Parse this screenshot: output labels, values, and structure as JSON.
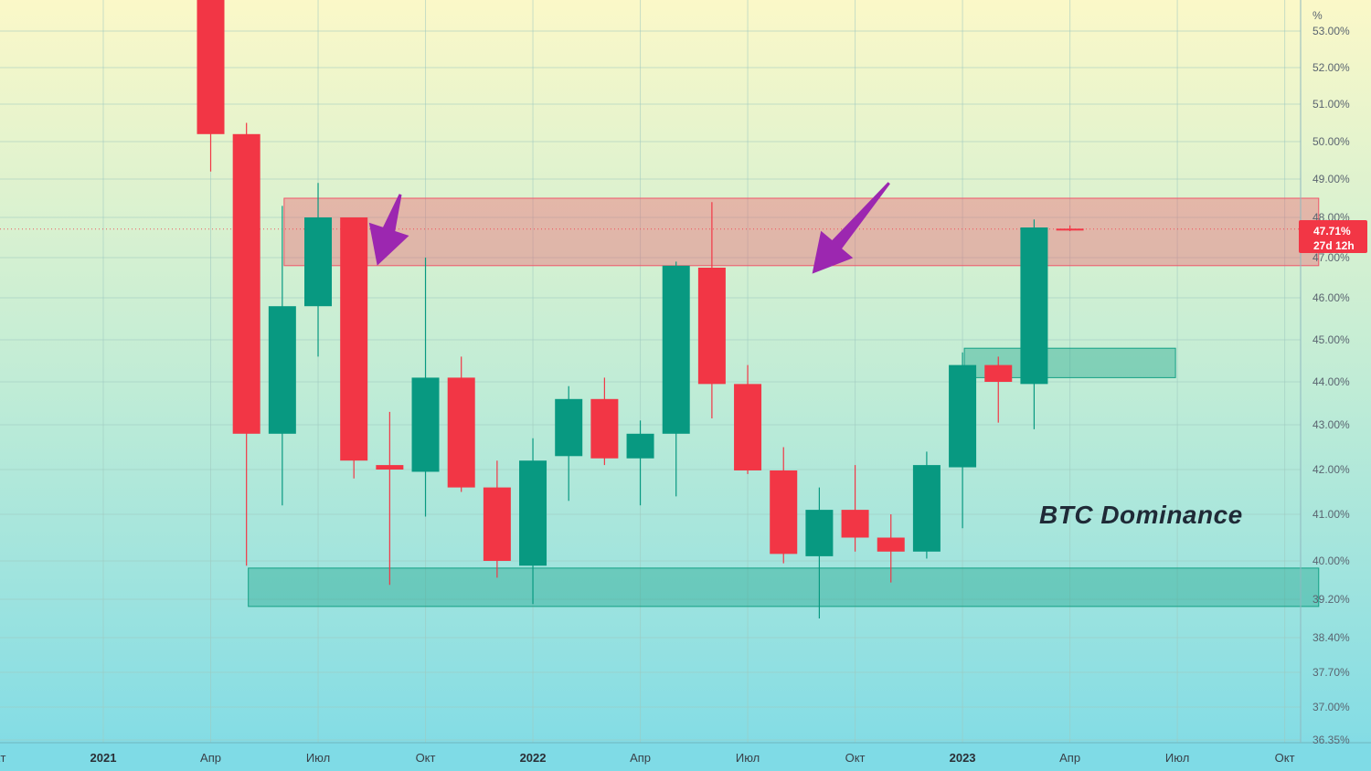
{
  "chart_data": {
    "type": "candlestick",
    "annotation": "BTC Dominance",
    "price_unit": "%",
    "timeframe": "monthly",
    "current_price_label": "47.71%",
    "countdown_label": "27d 12h",
    "x_tick_labels": [
      {
        "month": 0,
        "label": "2021",
        "year": true
      },
      {
        "month": 3,
        "label": "Апр"
      },
      {
        "month": 6,
        "label": "Июл"
      },
      {
        "month": 9,
        "label": "Окт"
      },
      {
        "month": 12,
        "label": "2022",
        "year": true
      },
      {
        "month": 15,
        "label": "Апр"
      },
      {
        "month": 18,
        "label": "Июл"
      },
      {
        "month": 21,
        "label": "Окт"
      },
      {
        "month": 24,
        "label": "2023",
        "year": true
      },
      {
        "month": 27,
        "label": "Апр"
      },
      {
        "month": 30,
        "label": "Июл"
      },
      {
        "month": 33,
        "label": "Окт"
      }
    ],
    "x_tick_edge_label": "Окт",
    "y_ticks": [
      {
        "value": 53.0,
        "label": "53.00%"
      },
      {
        "value": 52.0,
        "label": "52.00%"
      },
      {
        "value": 51.0,
        "label": "51.00%"
      },
      {
        "value": 50.0,
        "label": "50.00%"
      },
      {
        "value": 49.0,
        "label": "49.00%"
      },
      {
        "value": 48.0,
        "label": "48.00%"
      },
      {
        "value": 47.0,
        "label": "47.00%"
      },
      {
        "value": 46.0,
        "label": "46.00%"
      },
      {
        "value": 45.0,
        "label": "45.00%"
      },
      {
        "value": 44.0,
        "label": "44.00%"
      },
      {
        "value": 43.0,
        "label": "43.00%"
      },
      {
        "value": 42.0,
        "label": "42.00%"
      },
      {
        "value": 41.0,
        "label": "41.00%"
      },
      {
        "value": 40.0,
        "label": "40.00%"
      },
      {
        "value": 39.2,
        "label": "39.20%"
      },
      {
        "value": 38.4,
        "label": "38.40%"
      },
      {
        "value": 37.7,
        "label": "37.70%"
      },
      {
        "value": 37.0,
        "label": "37.00%"
      },
      {
        "value": 36.35,
        "label": "36.35%"
      }
    ],
    "candles": [
      {
        "month": 3,
        "date": "2021-04",
        "open": 54.0,
        "high": 54.0,
        "low": 49.2,
        "close": 50.2
      },
      {
        "month": 4,
        "date": "2021-05",
        "open": 50.2,
        "high": 50.5,
        "low": 39.9,
        "close": 42.8
      },
      {
        "month": 5,
        "date": "2021-06",
        "open": 42.8,
        "high": 48.3,
        "low": 41.2,
        "close": 45.8
      },
      {
        "month": 6,
        "date": "2021-07",
        "open": 45.8,
        "high": 48.9,
        "low": 44.6,
        "close": 48.0
      },
      {
        "month": 7,
        "date": "2021-08",
        "open": 48.0,
        "high": 48.0,
        "low": 41.8,
        "close": 42.2
      },
      {
        "month": 8,
        "date": "2021-09",
        "open": 42.1,
        "high": 43.3,
        "low": 39.5,
        "close": 42.0
      },
      {
        "month": 9,
        "date": "2021-10",
        "open": 41.95,
        "high": 47.0,
        "low": 40.95,
        "close": 44.1
      },
      {
        "month": 10,
        "date": "2021-11",
        "open": 44.1,
        "high": 44.6,
        "low": 41.5,
        "close": 41.6
      },
      {
        "month": 11,
        "date": "2021-12",
        "open": 41.6,
        "high": 42.2,
        "low": 39.65,
        "close": 40.0
      },
      {
        "month": 12,
        "date": "2022-01",
        "open": 39.9,
        "high": 42.7,
        "low": 39.1,
        "close": 42.2
      },
      {
        "month": 13,
        "date": "2022-02",
        "open": 42.3,
        "high": 43.9,
        "low": 41.3,
        "close": 43.6
      },
      {
        "month": 14,
        "date": "2022-03",
        "open": 43.6,
        "high": 44.1,
        "low": 42.1,
        "close": 42.25
      },
      {
        "month": 15,
        "date": "2022-04",
        "open": 42.25,
        "high": 43.1,
        "low": 41.2,
        "close": 42.8
      },
      {
        "month": 16,
        "date": "2022-05",
        "open": 42.8,
        "high": 46.9,
        "low": 41.4,
        "close": 46.8
      },
      {
        "month": 17,
        "date": "2022-06",
        "open": 46.75,
        "high": 48.4,
        "low": 43.15,
        "close": 43.95
      },
      {
        "month": 18,
        "date": "2022-07",
        "open": 43.95,
        "high": 44.4,
        "low": 41.9,
        "close": 41.98
      },
      {
        "month": 19,
        "date": "2022-08",
        "open": 41.98,
        "high": 42.5,
        "low": 39.95,
        "close": 40.15
      },
      {
        "month": 20,
        "date": "2022-09",
        "open": 40.1,
        "high": 41.6,
        "low": 38.8,
        "close": 41.1
      },
      {
        "month": 21,
        "date": "2022-10",
        "open": 41.1,
        "high": 42.1,
        "low": 40.2,
        "close": 40.5
      },
      {
        "month": 22,
        "date": "2022-11",
        "open": 40.5,
        "high": 41.0,
        "low": 39.55,
        "close": 40.2
      },
      {
        "month": 23,
        "date": "2022-12",
        "open": 40.2,
        "high": 42.4,
        "low": 40.05,
        "close": 42.1
      },
      {
        "month": 24,
        "date": "2023-01",
        "open": 42.05,
        "high": 44.7,
        "low": 40.7,
        "close": 44.4
      },
      {
        "month": 25,
        "date": "2023-02",
        "open": 44.4,
        "high": 44.6,
        "low": 43.05,
        "close": 44.0
      },
      {
        "month": 26,
        "date": "2023-03",
        "open": 43.95,
        "high": 47.95,
        "low": 42.9,
        "close": 47.75
      },
      {
        "month": 27,
        "date": "2023-04",
        "open": 47.72,
        "high": 47.8,
        "low": 47.66,
        "close": 47.71
      }
    ],
    "zones": [
      {
        "type": "resistance",
        "color": "#f0566a",
        "month_from": 5,
        "month_to": 34,
        "low": 46.8,
        "high": 48.5
      },
      {
        "type": "support",
        "color": "#14a085",
        "month_from": 4,
        "month_to": 34,
        "low": 39.05,
        "high": 39.85
      },
      {
        "type": "support",
        "color": "#14a085",
        "month_from": 24,
        "month_to": 30,
        "low": 44.1,
        "high": 44.8
      }
    ],
    "arrows": [
      {
        "color": "#9c27b0",
        "from_month": 8.3,
        "from_value": 48.6,
        "to_month": 7.65,
        "to_value": 46.8
      },
      {
        "color": "#9c27b0",
        "from_month": 21.95,
        "from_value": 48.9,
        "to_month": 19.8,
        "to_value": 46.6
      }
    ],
    "colors": {
      "up": "#089981",
      "down": "#f23645",
      "price_label": "#f23645"
    },
    "grid": true
  }
}
